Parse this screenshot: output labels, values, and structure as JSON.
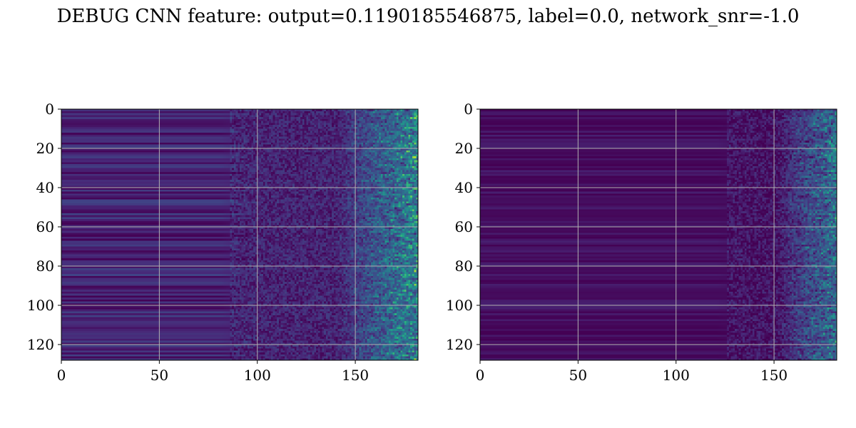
{
  "figure": {
    "title": "DEBUG CNN feature: output=0.1190185546875, label=0.0, network_snr=-1.0"
  },
  "chart_data": [
    {
      "type": "heatmap",
      "colormap": "viridis",
      "rows": 128,
      "cols": 182,
      "xlim": [
        0,
        182
      ],
      "ylim": [
        128,
        0
      ],
      "x_ticks": [
        0,
        50,
        100,
        150
      ],
      "y_ticks": [
        0,
        20,
        40,
        60,
        80,
        100,
        120
      ],
      "grid": true,
      "pattern": {
        "left_band_end_col": 80,
        "noise_start_col": 85,
        "hot_start_col": 140,
        "base_level": 0.1,
        "band_variation": 0.1,
        "hot_peak_level": 0.8
      }
    },
    {
      "type": "heatmap",
      "colormap": "viridis",
      "rows": 128,
      "cols": 182,
      "xlim": [
        0,
        182
      ],
      "ylim": [
        128,
        0
      ],
      "x_ticks": [
        0,
        50,
        100,
        150
      ],
      "y_ticks": [
        0,
        20,
        40,
        60,
        80,
        100,
        120
      ],
      "grid": true,
      "pattern": {
        "left_band_end_col": 120,
        "noise_start_col": 125,
        "hot_start_col": 150,
        "base_level": 0.04,
        "band_variation": 0.05,
        "hot_peak_level": 0.7
      }
    }
  ]
}
